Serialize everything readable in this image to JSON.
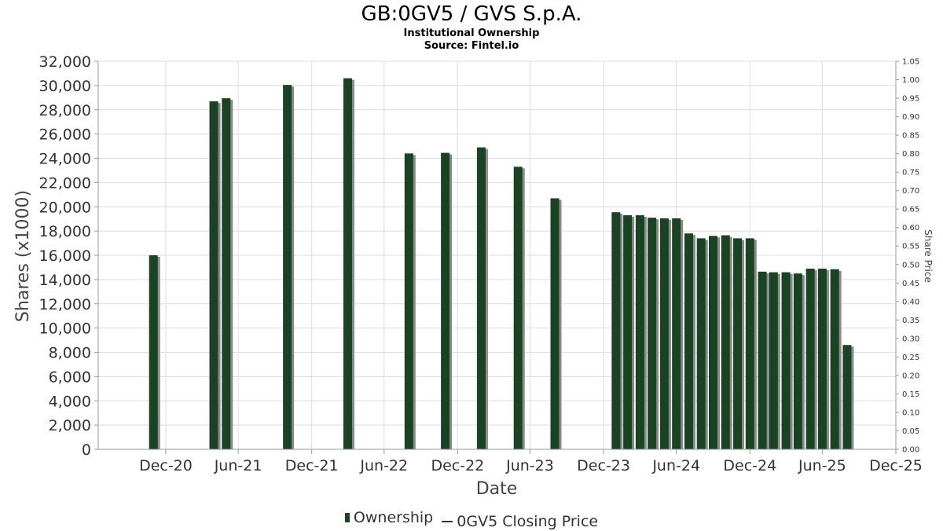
{
  "header": {
    "title": "GB:0GV5 / GVS S.p.A.",
    "subtitle": "Institutional Ownership",
    "source": "Source: Fintel.io"
  },
  "legend": {
    "ownership": "Ownership",
    "price": "0GV5 Closing Price"
  },
  "colors": {
    "bar": "#1a4323",
    "bar_shadow": "#8a8a8a",
    "grid": "#dddddd",
    "axis": "#999999"
  },
  "chart_data": {
    "type": "bar",
    "title": "GB:0GV5 / GVS S.p.A.",
    "xlabel": "Date",
    "ylabel": "Shares (x1000)",
    "y2label": "Share Price",
    "ylim": [
      0,
      32000
    ],
    "y2lim": [
      0,
      1.05
    ],
    "y_ticks": [
      "0",
      "2,000",
      "4,000",
      "6,000",
      "8,000",
      "10,000",
      "12,000",
      "14,000",
      "16,000",
      "18,000",
      "20,000",
      "22,000",
      "24,000",
      "26,000",
      "28,000",
      "30,000",
      "32,000"
    ],
    "y2_ticks": [
      "0.00",
      "0.05",
      "0.10",
      "0.15",
      "0.20",
      "0.25",
      "0.30",
      "0.35",
      "0.40",
      "0.45",
      "0.50",
      "0.55",
      "0.60",
      "0.65",
      "0.70",
      "0.75",
      "0.80",
      "0.85",
      "0.90",
      "0.95",
      "1.00",
      "1.05"
    ],
    "x_ticks": [
      "Dec-20",
      "Jun-21",
      "Dec-21",
      "Jun-22",
      "Dec-22",
      "Jun-23",
      "Dec-23",
      "Jun-24",
      "Dec-24",
      "Jun-25",
      "Dec-25"
    ],
    "grid": true,
    "legend_position": "bottom",
    "series": [
      {
        "name": "Ownership",
        "dates": [
          "2020-11-30",
          "2021-04-30",
          "2021-05-31",
          "2021-10-31",
          "2022-03-31",
          "2022-08-31",
          "2022-11-30",
          "2023-02-28",
          "2023-05-31",
          "2023-08-31",
          "2024-01-31",
          "2024-02-29",
          "2024-03-31",
          "2024-04-30",
          "2024-05-31",
          "2024-06-30",
          "2024-07-31",
          "2024-08-31",
          "2024-09-30",
          "2024-10-31",
          "2024-11-30",
          "2024-12-31",
          "2025-01-31",
          "2025-02-28",
          "2025-03-31",
          "2025-04-30",
          "2025-05-31",
          "2025-06-30",
          "2025-07-31",
          "2025-08-31"
        ],
        "values": [
          16000,
          28700,
          28950,
          30050,
          30600,
          24400,
          24450,
          24900,
          23300,
          20700,
          19550,
          19300,
          19300,
          19100,
          19050,
          19050,
          17800,
          17400,
          17600,
          17650,
          17400,
          17400,
          14650,
          14600,
          14600,
          14500,
          14900,
          14900,
          14850,
          8600
        ]
      },
      {
        "name": "0GV5 Closing Price",
        "dates": [],
        "values": []
      }
    ]
  }
}
